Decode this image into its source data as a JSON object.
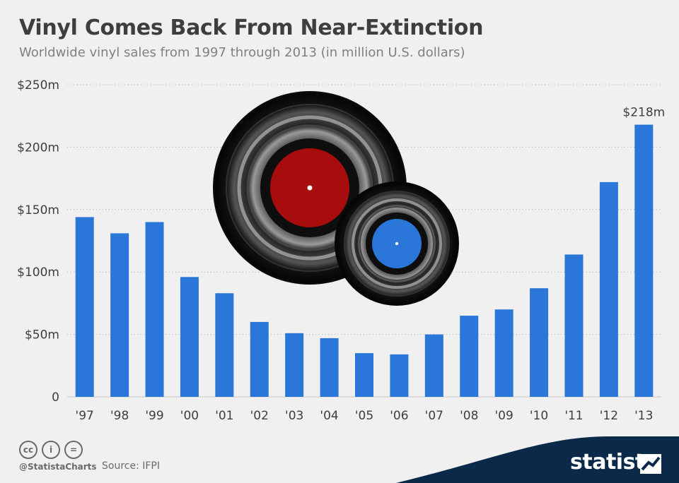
{
  "title": "Vinyl Comes Back From Near-Extinction",
  "subtitle": "Worldwide vinyl sales from 1997 through 2013 (in million U.S. dollars)",
  "chart_data": {
    "type": "bar",
    "categories": [
      "'97",
      "'98",
      "'99",
      "'00",
      "'01",
      "'02",
      "'03",
      "'04",
      "'05",
      "'06",
      "'07",
      "'08",
      "'09",
      "'10",
      "'11",
      "'12",
      "'13"
    ],
    "values": [
      144,
      131,
      140,
      96,
      83,
      60,
      51,
      47,
      35,
      34,
      50,
      65,
      70,
      87,
      114,
      172,
      218
    ],
    "ylim": [
      0,
      250
    ],
    "yticks": [
      0,
      50,
      100,
      150,
      200,
      250
    ],
    "ytick_labels": [
      "0",
      "$50m",
      "$100m",
      "$150m",
      "$200m",
      "$250m"
    ],
    "annotation": {
      "index": 16,
      "text": "$218m"
    },
    "bar_color": "#2a77d9",
    "grid": true,
    "grid_style": "dotted"
  },
  "illustration": {
    "icon": "vinyl-records",
    "large_label_color": "#a80d0d",
    "small_label_color": "#2a77d9"
  },
  "footer": {
    "cc_icons": [
      "cc",
      "i",
      "="
    ],
    "handle": "@StatistaCharts",
    "source": "Source: IFPI",
    "brand": "statista",
    "brand_color": "#0b2a4a"
  }
}
